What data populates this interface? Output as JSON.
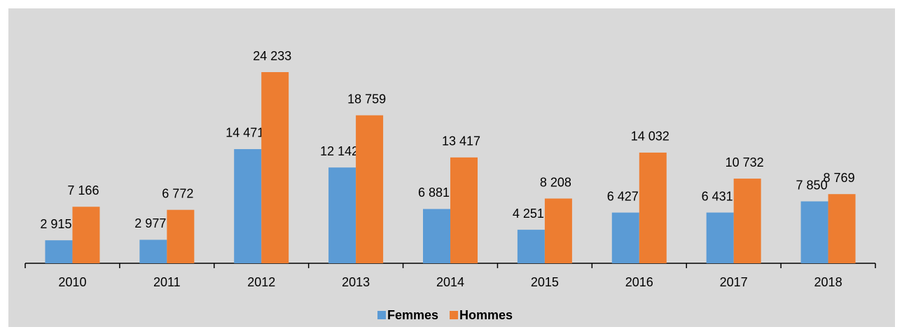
{
  "chart_data": {
    "type": "bar",
    "categories": [
      "2010",
      "2011",
      "2012",
      "2013",
      "2014",
      "2015",
      "2016",
      "2017",
      "2018"
    ],
    "series": [
      {
        "name": "Femmes",
        "color": "#5b9bd5",
        "values": [
          2915,
          2977,
          14471,
          12142,
          6881,
          4251,
          6427,
          6431,
          7850
        ],
        "value_labels": [
          "2 915",
          "2 977",
          "14 471",
          "12 142",
          "6 881",
          "4 251",
          "6 427",
          "6 431",
          "7 850"
        ]
      },
      {
        "name": "Hommes",
        "color": "#ed7d31",
        "values": [
          7166,
          6772,
          24233,
          18759,
          13417,
          8208,
          14032,
          10732,
          8769
        ],
        "value_labels": [
          "7 166",
          "6 772",
          "24 233",
          "18 759",
          "13 417",
          "8 208",
          "14 032",
          "10 732",
          "8 769"
        ]
      }
    ],
    "legend": "bottom"
  }
}
